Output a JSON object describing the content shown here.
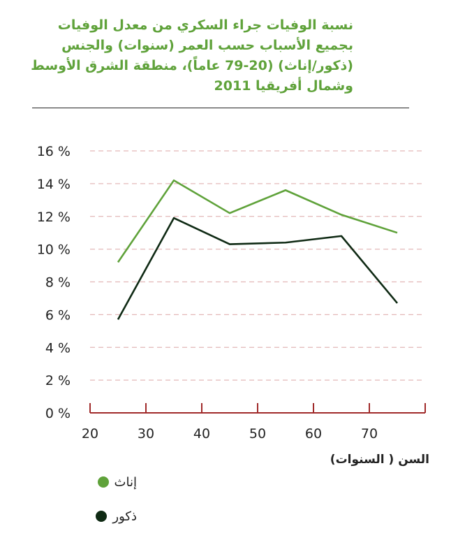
{
  "chart_data": {
    "type": "line",
    "title": "نسبة الوفيات جراء السكري من معدل الوفيات بجميع الأسباب حسب العمر (سنوات) والجنس (ذكور/إناث) (20-79 عاماً)، منطقة الشرق الأوسط وشمال أفريقيا 2011",
    "xlabel": "السن ( السنوات)",
    "ylabel": "",
    "x": [
      25,
      35,
      45,
      55,
      65,
      75
    ],
    "xlim": [
      20,
      80
    ],
    "ylim": [
      0,
      16
    ],
    "x_ticks": [
      "20",
      "30",
      "40",
      "50",
      "60",
      "70"
    ],
    "y_ticks": [
      "0 %",
      "2 %",
      "4 %",
      "6 %",
      "8 %",
      "10 %",
      "12 %",
      "14 %",
      "16 %"
    ],
    "grid": "horizontal dashed",
    "legend_position": "bottom-left",
    "series": [
      {
        "name": "إناث",
        "color": "#5fa23a",
        "values": [
          9.2,
          14.2,
          12.2,
          13.6,
          12.1,
          11.0
        ]
      },
      {
        "name": "ذكور",
        "color": "#0f2a14",
        "values": [
          5.7,
          11.9,
          10.3,
          10.4,
          10.8,
          6.7
        ]
      }
    ]
  }
}
